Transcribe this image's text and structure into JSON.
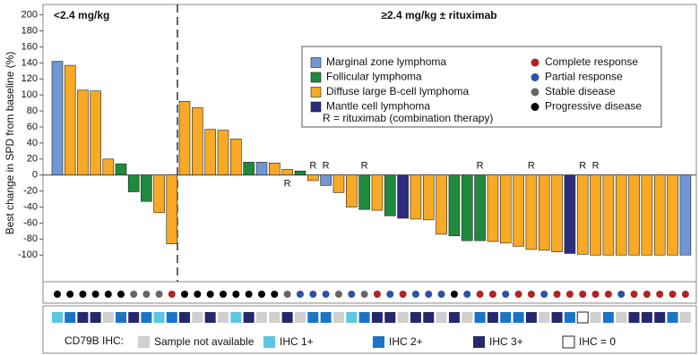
{
  "chart_data": {
    "type": "waterfall",
    "y_label": "Best change in SPD from baseline (%)",
    "group_labels": [
      "<2.4 mg/kg",
      "≥2.4 mg/kg ± rituximab"
    ],
    "group_sizes": [
      10,
      40
    ],
    "ylim": [
      -131,
      213
    ],
    "yticks": [
      -100,
      -80,
      -60,
      -40,
      -20,
      0,
      20,
      40,
      60,
      80,
      100,
      120,
      140,
      160,
      180,
      200
    ],
    "values": [
      142,
      137,
      106,
      105,
      20,
      14,
      -21,
      -33,
      -47,
      -86,
      92,
      84,
      57,
      56,
      45,
      16,
      16,
      15,
      7,
      5,
      -7,
      -13,
      -22,
      -40,
      -43,
      -44,
      -51,
      -54,
      -55,
      -56,
      -74,
      -76,
      -82,
      -82,
      -83,
      -85,
      -89,
      -93,
      -94,
      -96,
      -98,
      -99,
      -100,
      -100,
      -100,
      -100,
      -100,
      -100,
      -100,
      -100
    ],
    "subtypes": [
      {
        "name": "Marginal zone lymphoma",
        "color": "#7097d3"
      },
      {
        "name": "Follicular lymphoma",
        "color": "#1f8a3e"
      },
      {
        "name": "Diffuse large B-cell lymphoma",
        "color": "#f8a925"
      },
      {
        "name": "Mantle cell lymphoma",
        "color": "#2b2c7e"
      }
    ],
    "bar_subtypes": [
      "Marginal zone lymphoma",
      "Diffuse large B-cell lymphoma",
      "Diffuse large B-cell lymphoma",
      "Diffuse large B-cell lymphoma",
      "Diffuse large B-cell lymphoma",
      "Follicular lymphoma",
      "Follicular lymphoma",
      "Follicular lymphoma",
      "Diffuse large B-cell lymphoma",
      "Diffuse large B-cell lymphoma",
      "Diffuse large B-cell lymphoma",
      "Diffuse large B-cell lymphoma",
      "Diffuse large B-cell lymphoma",
      "Diffuse large B-cell lymphoma",
      "Diffuse large B-cell lymphoma",
      "Follicular lymphoma",
      "Marginal zone lymphoma",
      "Diffuse large B-cell lymphoma",
      "Diffuse large B-cell lymphoma",
      "Follicular lymphoma",
      "Diffuse large B-cell lymphoma",
      "Marginal zone lymphoma",
      "Diffuse large B-cell lymphoma",
      "Diffuse large B-cell lymphoma",
      "Follicular lymphoma",
      "Diffuse large B-cell lymphoma",
      "Follicular lymphoma",
      "Mantle cell lymphoma",
      "Diffuse large B-cell lymphoma",
      "Diffuse large B-cell lymphoma",
      "Diffuse large B-cell lymphoma",
      "Follicular lymphoma",
      "Follicular lymphoma",
      "Follicular lymphoma",
      "Diffuse large B-cell lymphoma",
      "Diffuse large B-cell lymphoma",
      "Diffuse large B-cell lymphoma",
      "Diffuse large B-cell lymphoma",
      "Diffuse large B-cell lymphoma",
      "Diffuse large B-cell lymphoma",
      "Mantle cell lymphoma",
      "Diffuse large B-cell lymphoma",
      "Diffuse large B-cell lymphoma",
      "Diffuse large B-cell lymphoma",
      "Diffuse large B-cell lymphoma",
      "Diffuse large B-cell lymphoma",
      "Diffuse large B-cell lymphoma",
      "Diffuse large B-cell lymphoma",
      "Diffuse large B-cell lymphoma",
      "Marginal zone lymphoma"
    ],
    "combination_label": "R = rituximab (combination therapy)",
    "combination": [
      null,
      null,
      null,
      null,
      null,
      null,
      null,
      null,
      null,
      null,
      null,
      null,
      null,
      null,
      null,
      null,
      null,
      null,
      "R",
      null,
      "R",
      "R",
      null,
      null,
      "R",
      null,
      null,
      null,
      null,
      null,
      null,
      null,
      null,
      "R",
      null,
      null,
      null,
      "R",
      null,
      null,
      null,
      "R",
      "R",
      null,
      null,
      null,
      null,
      null,
      null,
      null
    ],
    "responses_legend": [
      {
        "name": "Complete response",
        "color": "#b3221f"
      },
      {
        "name": "Partial response",
        "color": "#2a52a8"
      },
      {
        "name": "Stable disease",
        "color": "#666666"
      },
      {
        "name": "Progressive disease",
        "color": "#000000"
      }
    ],
    "responses": [
      "Progressive disease",
      "Progressive disease",
      "Progressive disease",
      "Progressive disease",
      "Progressive disease",
      "Progressive disease",
      "Stable disease",
      "Stable disease",
      "Stable disease",
      "Complete response",
      "Progressive disease",
      "Progressive disease",
      "Progressive disease",
      "Progressive disease",
      "Progressive disease",
      "Progressive disease",
      "Progressive disease",
      "Progressive disease",
      "Stable disease",
      "Partial response",
      "Partial response",
      "Partial response",
      "Stable disease",
      "Partial response",
      "Stable disease",
      "Complete response",
      "Partial response",
      "Complete response",
      "Partial response",
      "Partial response",
      "Partial response",
      "Progressive disease",
      "Partial response",
      "Complete response",
      "Complete response",
      "Partial response",
      "Complete response",
      "Complete response",
      "Partial response",
      "Complete response",
      "Complete response",
      "Complete response",
      "Complete response",
      "Complete response",
      "Partial response",
      "Complete response",
      "Complete response",
      "Complete response",
      "Complete response",
      "Complete response"
    ],
    "ihc_title": "CD79B IHC:",
    "ihc_legend": [
      {
        "name": "Sample not available",
        "color": "#cfcfcf"
      },
      {
        "name": "IHC 1+",
        "color": "#5cc6e0"
      },
      {
        "name": "IHC 2+",
        "color": "#1b74c5"
      },
      {
        "name": "IHC 3+",
        "color": "#26286c"
      },
      {
        "name": "IHC = 0",
        "color": "#ffffff"
      }
    ],
    "ihc": [
      "IHC 1+",
      "IHC 2+",
      "IHC 3+",
      "IHC 3+",
      "Sample not available",
      "IHC 2+",
      "IHC 3+",
      "IHC 2+",
      "IHC 1+",
      "IHC 2+",
      "IHC 3+",
      "Sample not available",
      "IHC 3+",
      "Sample not available",
      "IHC 1+",
      "IHC 3+",
      "Sample not available",
      "Sample not available",
      "IHC 3+",
      "Sample not available",
      "IHC 2+",
      "IHC 2+",
      "Sample not available",
      "IHC 1+",
      "IHC 2+",
      "IHC 3+",
      "IHC 3+",
      "Sample not available",
      "IHC 3+",
      "IHC 3+",
      "Sample not available",
      "IHC 3+",
      "Sample not available",
      "IHC 2+",
      "IHC 3+",
      "IHC 2+",
      "IHC 2+",
      "IHC 3+",
      "Sample not available",
      "IHC 3+",
      "IHC 2+",
      "IHC = 0",
      "Sample not available",
      "IHC 2+",
      "Sample not available",
      "IHC 3+",
      "IHC 3+",
      "IHC 3+",
      "IHC 2+",
      "Sample not available"
    ]
  }
}
